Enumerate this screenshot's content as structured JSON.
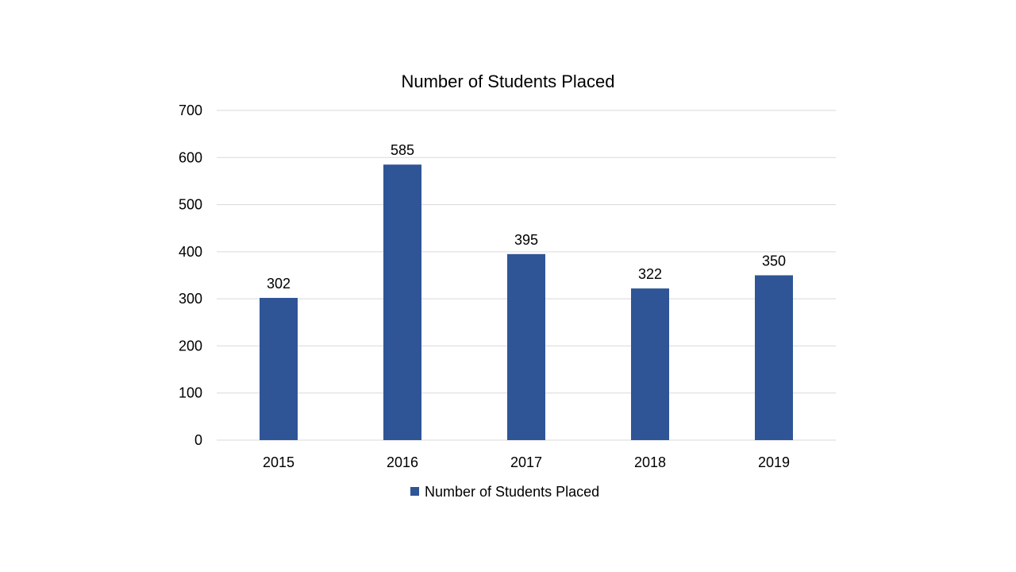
{
  "chart_data": {
    "type": "bar",
    "title": "Number of Students Placed",
    "categories": [
      "2015",
      "2016",
      "2017",
      "2018",
      "2019"
    ],
    "series": [
      {
        "name": "Number of Students Placed",
        "values": [
          302,
          585,
          395,
          322,
          350
        ],
        "color": "#2F5597"
      }
    ],
    "ylim": [
      0,
      700
    ],
    "yticks": [
      "0",
      "100",
      "200",
      "300",
      "400",
      "500",
      "600",
      "700"
    ],
    "grid": true,
    "data_labels": true,
    "legend_position": "bottom"
  }
}
